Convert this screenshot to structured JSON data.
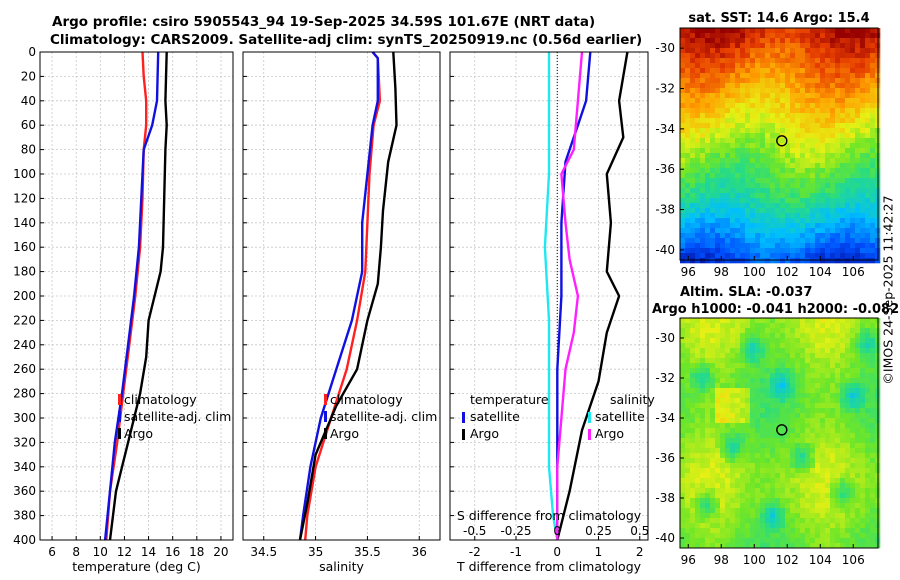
{
  "figure": {
    "title_line1": "Argo profile: csiro 5905543_94 19-Sep-2025 34.59S 101.67E (NRT data)",
    "title_line2": "Climatology: CARS2009. Satellite-adj clim: synTS_20250919.nc (0.56d earlier)",
    "credit": "©IMOS 24-Sep-2025 11:42:27"
  },
  "colors": {
    "climatology": "#ff2020",
    "satellite": "#1010e0",
    "argo": "#000000",
    "sal_satellite": "#20e8f0",
    "sal_argo": "#ff20ff"
  },
  "chart_data": [
    {
      "type": "line",
      "name": "temperature-profile",
      "xlabel": "temperature (deg C)",
      "ylabel": "",
      "xlim": [
        5,
        21
      ],
      "ylim": [
        400,
        0
      ],
      "xticks": [
        6,
        8,
        10,
        12,
        14,
        16,
        18,
        20
      ],
      "yticks": [
        0,
        20,
        40,
        60,
        80,
        100,
        120,
        140,
        160,
        180,
        200,
        220,
        240,
        260,
        280,
        300,
        320,
        340,
        360,
        380,
        400
      ],
      "legend": [
        "climatology",
        "satellite-adj. clim",
        "Argo"
      ],
      "series": [
        {
          "name": "climatology",
          "color": "#ff2020",
          "points": [
            [
              13.5,
              0
            ],
            [
              13.6,
              20
            ],
            [
              13.8,
              40
            ],
            [
              13.8,
              60
            ],
            [
              13.6,
              80
            ],
            [
              13.5,
              120
            ],
            [
              13.3,
              160
            ],
            [
              12.9,
              200
            ],
            [
              12.4,
              240
            ],
            [
              11.9,
              280
            ],
            [
              11.4,
              320
            ],
            [
              10.8,
              360
            ],
            [
              10.5,
              400
            ]
          ]
        },
        {
          "name": "satellite-adj. clim",
          "color": "#1010e0",
          "points": [
            [
              14.8,
              0
            ],
            [
              14.7,
              40
            ],
            [
              14.3,
              60
            ],
            [
              13.6,
              80
            ],
            [
              13.4,
              120
            ],
            [
              13.2,
              160
            ],
            [
              12.8,
              200
            ],
            [
              12.3,
              240
            ],
            [
              11.8,
              280
            ],
            [
              11.2,
              320
            ],
            [
              10.8,
              360
            ],
            [
              10.4,
              400
            ]
          ]
        },
        {
          "name": "Argo",
          "color": "#000000",
          "points": [
            [
              15.5,
              0
            ],
            [
              15.4,
              40
            ],
            [
              15.5,
              60
            ],
            [
              15.4,
              80
            ],
            [
              15.3,
              120
            ],
            [
              15.2,
              160
            ],
            [
              15.0,
              180
            ],
            [
              14.5,
              200
            ],
            [
              14.0,
              220
            ],
            [
              13.8,
              250
            ],
            [
              13.3,
              280
            ],
            [
              12.3,
              320
            ],
            [
              11.3,
              360
            ],
            [
              10.8,
              400
            ]
          ]
        }
      ]
    },
    {
      "type": "line",
      "name": "salinity-profile",
      "xlabel": "salinity",
      "ylabel": "",
      "xlim": [
        34.3,
        36.2
      ],
      "ylim": [
        400,
        0
      ],
      "xticks": [
        34.5,
        35,
        35.5,
        36
      ],
      "yticks": [
        0,
        20,
        40,
        60,
        80,
        100,
        120,
        140,
        160,
        180,
        200,
        220,
        240,
        260,
        280,
        300,
        320,
        340,
        360,
        380,
        400
      ],
      "legend": [
        "climatology",
        "satellite-adj. clim",
        "Argo"
      ],
      "series": [
        {
          "name": "climatology",
          "color": "#ff2020",
          "points": [
            [
              35.55,
              0
            ],
            [
              35.6,
              5
            ],
            [
              35.62,
              40
            ],
            [
              35.56,
              60
            ],
            [
              35.52,
              100
            ],
            [
              35.5,
              140
            ],
            [
              35.48,
              180
            ],
            [
              35.4,
              220
            ],
            [
              35.3,
              260
            ],
            [
              35.15,
              300
            ],
            [
              35.0,
              340
            ],
            [
              34.92,
              380
            ],
            [
              34.9,
              400
            ]
          ]
        },
        {
          "name": "satellite-adj. clim",
          "color": "#1010e0",
          "points": [
            [
              35.55,
              0
            ],
            [
              35.6,
              5
            ],
            [
              35.6,
              40
            ],
            [
              35.55,
              60
            ],
            [
              35.5,
              100
            ],
            [
              35.45,
              140
            ],
            [
              35.45,
              180
            ],
            [
              35.35,
              220
            ],
            [
              35.2,
              260
            ],
            [
              35.05,
              300
            ],
            [
              34.95,
              340
            ],
            [
              34.88,
              380
            ],
            [
              34.85,
              400
            ]
          ]
        },
        {
          "name": "Argo",
          "color": "#000000",
          "points": [
            [
              35.75,
              0
            ],
            [
              35.77,
              30
            ],
            [
              35.78,
              60
            ],
            [
              35.7,
              90
            ],
            [
              35.65,
              130
            ],
            [
              35.63,
              160
            ],
            [
              35.6,
              190
            ],
            [
              35.5,
              220
            ],
            [
              35.4,
              260
            ],
            [
              35.2,
              290
            ],
            [
              35.0,
              330
            ],
            [
              34.92,
              370
            ],
            [
              34.85,
              400
            ]
          ]
        }
      ]
    },
    {
      "type": "line",
      "name": "difference-profile",
      "xlabel": "T difference from climatology",
      "ylabel": "",
      "xlim": [
        -2.6,
        2.2
      ],
      "ylim": [
        400,
        0
      ],
      "xticks": [
        -2,
        -1,
        0,
        1,
        2
      ],
      "top_axis_label": "S difference from climatology",
      "top_xticks": [
        "-0.5",
        "-0.25",
        "0",
        "0.25",
        "0.5"
      ],
      "yticks": [
        0,
        20,
        40,
        60,
        80,
        100,
        120,
        140,
        160,
        180,
        200,
        220,
        240,
        260,
        280,
        300,
        320,
        340,
        360,
        380,
        400
      ],
      "legend_temperature": {
        "title": "temperature",
        "entries": [
          "satellite",
          "Argo"
        ]
      },
      "legend_salinity": {
        "title": "salinity",
        "entries": [
          "satellite",
          "Argo"
        ]
      },
      "series": [
        {
          "name": "temperature satellite",
          "color": "#1010e0",
          "points": [
            [
              0.8,
              0
            ],
            [
              0.7,
              40
            ],
            [
              0.5,
              60
            ],
            [
              0.2,
              90
            ],
            [
              0.1,
              140
            ],
            [
              0.1,
              200
            ],
            [
              0.0,
              260
            ],
            [
              0.0,
              320
            ],
            [
              0.0,
              400
            ]
          ]
        },
        {
          "name": "temperature Argo",
          "color": "#000000",
          "points": [
            [
              1.7,
              0
            ],
            [
              1.5,
              40
            ],
            [
              1.6,
              70
            ],
            [
              1.2,
              100
            ],
            [
              1.3,
              140
            ],
            [
              1.2,
              180
            ],
            [
              1.5,
              200
            ],
            [
              1.2,
              230
            ],
            [
              1.0,
              270
            ],
            [
              0.6,
              310
            ],
            [
              0.3,
              360
            ],
            [
              0.0,
              400
            ]
          ]
        },
        {
          "name": "salinity satellite",
          "color": "#20e8f0",
          "points": [
            [
              -0.2,
              0
            ],
            [
              -0.2,
              40
            ],
            [
              -0.2,
              100
            ],
            [
              -0.3,
              160
            ],
            [
              -0.2,
              220
            ],
            [
              -0.2,
              280
            ],
            [
              -0.2,
              340
            ],
            [
              -0.1,
              380
            ],
            [
              0.0,
              400
            ]
          ]
        },
        {
          "name": "salinity Argo",
          "color": "#ff20ff",
          "points": [
            [
              0.6,
              0
            ],
            [
              0.5,
              40
            ],
            [
              0.4,
              80
            ],
            [
              0.1,
              100
            ],
            [
              0.2,
              140
            ],
            [
              0.3,
              170
            ],
            [
              0.5,
              200
            ],
            [
              0.4,
              230
            ],
            [
              0.2,
              260
            ],
            [
              0.1,
              300
            ],
            [
              0.0,
              340
            ],
            [
              0.0,
              400
            ]
          ]
        }
      ]
    },
    {
      "type": "heatmap",
      "name": "sst-map",
      "title": "sat. SST: 14.6 Argo: 15.4",
      "xlim": [
        95.5,
        107.5
      ],
      "ylim": [
        -40.5,
        -29
      ],
      "xticks": [
        96,
        98,
        100,
        102,
        104,
        106
      ],
      "yticks": [
        -30,
        -32,
        -34,
        -36,
        -38,
        -40
      ],
      "marker": [
        101.67,
        -34.59
      ]
    },
    {
      "type": "heatmap",
      "name": "sla-map",
      "title": "Altim. SLA: -0.037",
      "subtitle": "Argo h1000: -0.041 h2000: -0.082",
      "xlim": [
        95.5,
        107.5
      ],
      "ylim": [
        -40.5,
        -29
      ],
      "xticks": [
        96,
        98,
        100,
        102,
        104,
        106
      ],
      "yticks": [
        -30,
        -32,
        -34,
        -36,
        -38,
        -40
      ],
      "marker": [
        101.67,
        -34.59
      ]
    }
  ]
}
